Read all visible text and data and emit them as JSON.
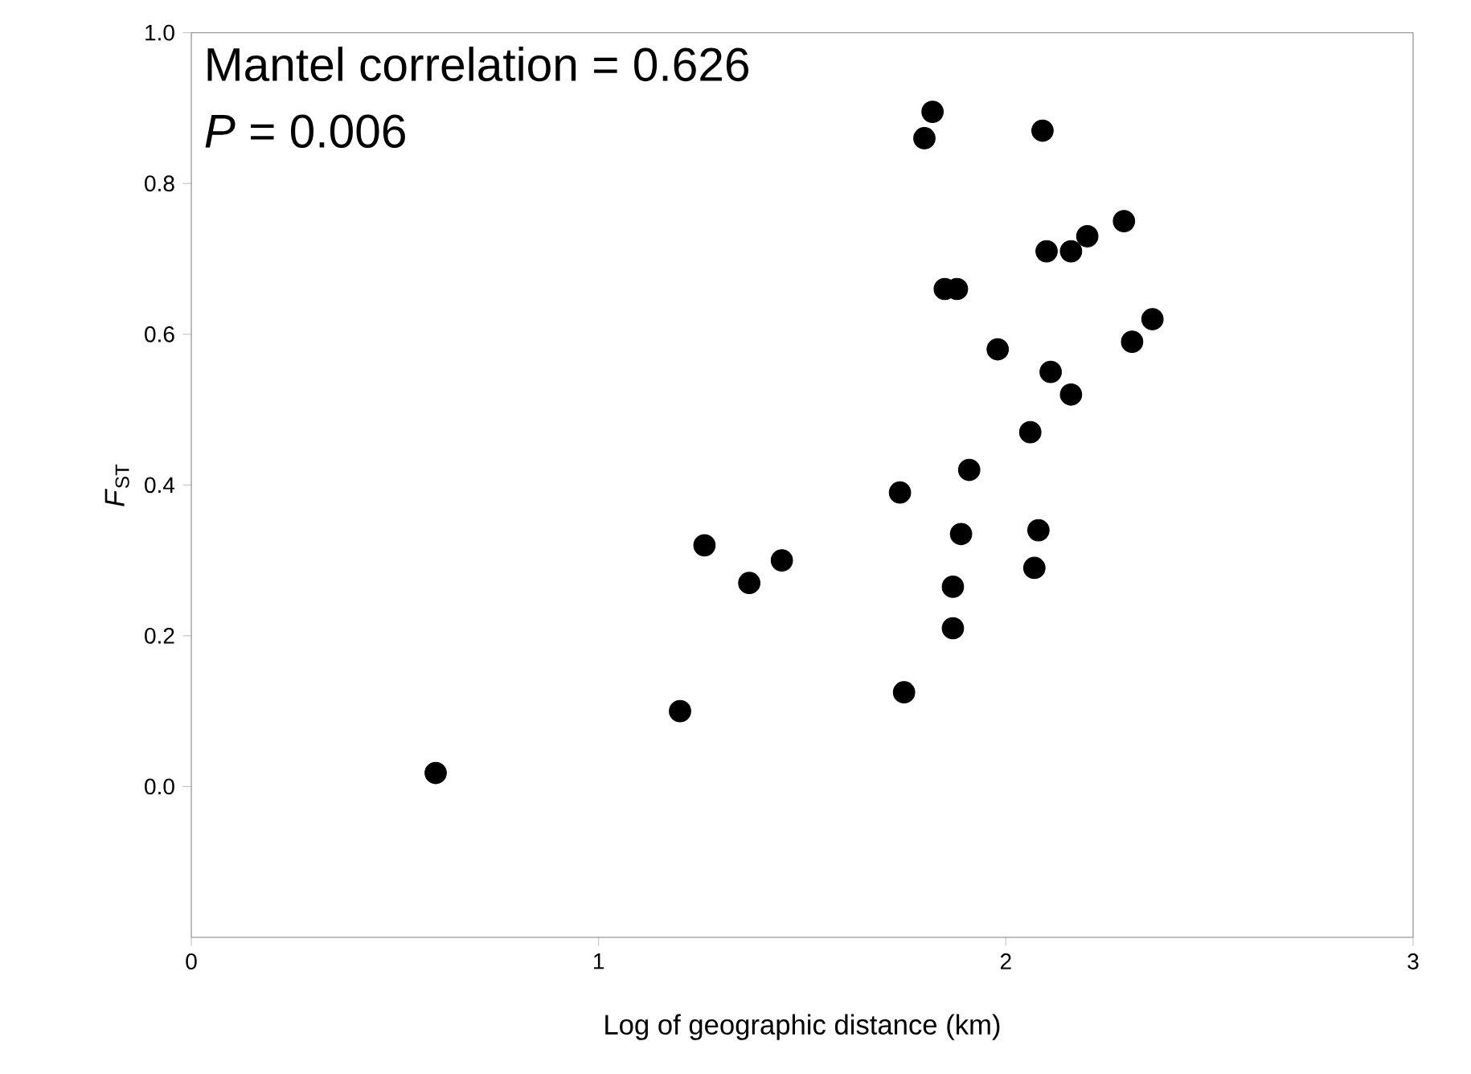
{
  "chart_data": {
    "type": "scatter",
    "xlabel": "Log of geographic distance (km)",
    "ylabel": "*F*$_{ST}$",
    "annotations": [
      "Mantel correlation = 0.626",
      "*P* = 0.006"
    ],
    "x": [
      0.6,
      1.2,
      1.26,
      1.37,
      1.45,
      1.75,
      1.87,
      2.29,
      2.2,
      2.1,
      2.16,
      1.85,
      1.88,
      2.36,
      2.31,
      1.98,
      2.11,
      2.16,
      2.06,
      1.91,
      1.74,
      1.89,
      2.08,
      2.07,
      1.87,
      1.82,
      1.8,
      2.09
    ],
    "values": [
      0.018,
      0.1,
      0.32,
      0.27,
      0.3,
      0.125,
      0.21,
      0.75,
      0.73,
      0.71,
      0.71,
      0.66,
      0.66,
      0.62,
      0.59,
      0.58,
      0.55,
      0.52,
      0.47,
      0.42,
      0.39,
      0.335,
      0.34,
      0.29,
      0.265,
      0.895,
      0.86,
      0.87
    ],
    "color": "#000000",
    "marker": "circle",
    "xlim": [
      0,
      3
    ],
    "ylim": [
      -0.2,
      1.0
    ],
    "xticks": [
      0,
      1,
      2,
      3
    ],
    "yticks": [
      {
        "value": 0.0,
        "label": "0.0"
      },
      {
        "value": 0.2,
        "label": "0.2"
      },
      {
        "value": 0.4,
        "label": "0.4"
      },
      {
        "value": 0.6,
        "label": "0.6"
      },
      {
        "value": 0.8,
        "label": "0.8"
      },
      {
        "value": 1.0,
        "label": "1.0"
      }
    ],
    "grid": false
  }
}
